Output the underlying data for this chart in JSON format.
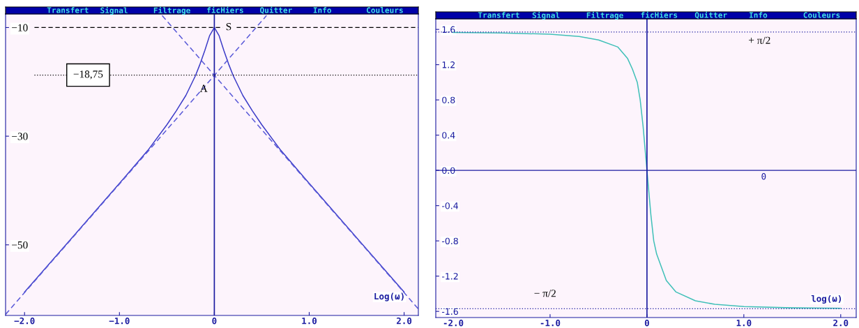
{
  "chart_data": [
    {
      "type": "line",
      "xlabel": "Log(ω)",
      "xlim": [
        -2.2,
        2.15
      ],
      "ylim": [
        -63,
        -7.5
      ],
      "xticks": [
        {
          "value": -2.0,
          "label": "−2.0"
        },
        {
          "value": -1.0,
          "label": "−1.0"
        },
        {
          "value": 0,
          "label": "0"
        },
        {
          "value": 1.0,
          "label": "1.0"
        },
        {
          "value": 2.0,
          "label": "2.0"
        }
      ],
      "yticks": [
        {
          "value": -10,
          "label": "−10"
        },
        {
          "value": -30,
          "label": "−30"
        },
        {
          "value": -50,
          "label": "−50"
        }
      ],
      "grid": false,
      "legend": false,
      "series": [
        {
          "color": "#3c3cc8",
          "line_style": "solid",
          "x": [
            -2.0,
            -1.5,
            -1.0,
            -0.7,
            -0.5,
            -0.4,
            -0.3,
            -0.2,
            -0.15,
            -0.1,
            -0.05,
            0,
            0.05,
            0.1,
            0.15,
            0.2,
            0.3,
            0.4,
            0.5,
            0.7,
            1.0,
            1.5,
            2.0
          ],
          "values": [
            -58.7,
            -48.7,
            -38.7,
            -32.6,
            -27.9,
            -25.3,
            -22.5,
            -18.9,
            -16.7,
            -14.2,
            -11.5,
            -10,
            -11.5,
            -14.2,
            -16.7,
            -18.9,
            -22.5,
            -25.3,
            -27.9,
            -32.6,
            -38.7,
            -48.7,
            -58.7
          ]
        },
        {
          "color": "#5a5ad8",
          "line_style": "dashed",
          "x": [
            -2.2,
            0.55
          ],
          "values": [
            -62.8,
            -7.8
          ]
        },
        {
          "color": "#5a5ad8",
          "line_style": "dashed",
          "x": [
            -0.55,
            2.15
          ],
          "values": [
            -7.8,
            -61.8
          ]
        }
      ],
      "ref_lines": [
        {
          "axis": "x",
          "value": 0,
          "color": "#1a1aa0",
          "line_style": "solid",
          "label": null
        },
        {
          "axis": "y",
          "value": -10,
          "color": "#000000",
          "line_style": "dashed",
          "label": "S"
        },
        {
          "axis": "y",
          "value": -18.75,
          "color": "#000000",
          "line_style": "dotted",
          "label": "−18,75"
        }
      ],
      "annotations": [
        "Transfert",
        "Signal",
        "Filtrage",
        "ficHiers",
        "Quitter",
        "Info",
        "Couleurs",
        "A"
      ]
    },
    {
      "type": "line",
      "xlabel": "log(ω)",
      "xlim": [
        -2.18,
        2.16
      ],
      "ylim": [
        -1.67,
        1.72
      ],
      "xticks": [
        {
          "value": -2.0,
          "label": "-2.0"
        },
        {
          "value": -1.0,
          "label": "-1.0"
        },
        {
          "value": 0,
          "label": "0"
        },
        {
          "value": 1.0,
          "label": "1.0"
        },
        {
          "value": 2.0,
          "label": "2.0"
        }
      ],
      "yticks": [
        {
          "value": 1.6,
          "label": "1.6"
        },
        {
          "value": 1.2,
          "label": "1.2"
        },
        {
          "value": 0.8,
          "label": "0.8"
        },
        {
          "value": 0.4,
          "label": "0.4"
        },
        {
          "value": 0.0,
          "label": "0.0"
        },
        {
          "value": -0.4,
          "label": "-0.4"
        },
        {
          "value": -0.8,
          "label": "-0.8"
        },
        {
          "value": -1.2,
          "label": "-1.2"
        },
        {
          "value": -1.6,
          "label": "-1.6"
        }
      ],
      "grid": false,
      "legend": false,
      "series": [
        {
          "color": "#40c0b8",
          "line_style": "solid",
          "x": [
            -2.0,
            -1.5,
            -1.0,
            -0.7,
            -0.5,
            -0.3,
            -0.2,
            -0.15,
            -0.1,
            -0.07,
            -0.04,
            -0.02,
            0,
            0.02,
            0.04,
            0.07,
            0.1,
            0.15,
            0.2,
            0.3,
            0.5,
            0.7,
            1.0,
            1.5,
            2.0
          ],
          "values": [
            1.565,
            1.56,
            1.545,
            1.52,
            1.48,
            1.4,
            1.27,
            1.15,
            1.0,
            0.8,
            0.5,
            0.25,
            0,
            -0.25,
            -0.5,
            -0.8,
            -0.95,
            -1.1,
            -1.25,
            -1.38,
            -1.48,
            -1.52,
            -1.545,
            -1.56,
            -1.565
          ]
        }
      ],
      "ref_lines": [
        {
          "axis": "x",
          "value": 0,
          "color": "#1a1aa0",
          "line_style": "solid",
          "label": null
        },
        {
          "axis": "y",
          "value": 0,
          "color": "#1a1aa0",
          "line_style": "solid",
          "label": null
        },
        {
          "axis": "y",
          "value": 1.5708,
          "color": "#1a1aa0",
          "line_style": "dotted",
          "label": "+ π/2"
        },
        {
          "axis": "y",
          "value": -1.5708,
          "color": "#1a1aa0",
          "line_style": "dotted",
          "label": "− π/2"
        }
      ],
      "annotations": [
        "Transfert",
        "Signal",
        "Filtrage",
        "ficHiers",
        "Quitter",
        "Info",
        "Couleurs",
        "0"
      ]
    }
  ]
}
